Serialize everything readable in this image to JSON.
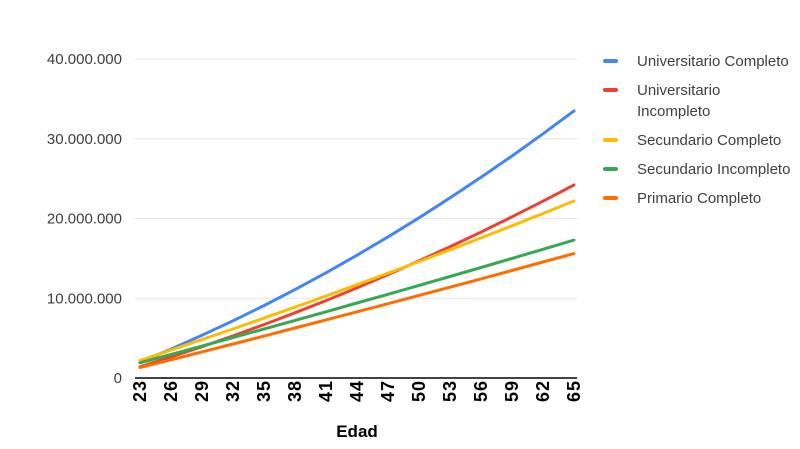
{
  "chart_data": {
    "type": "line",
    "title": "",
    "xlabel": "Edad",
    "ylabel": "",
    "grid": true,
    "legend_position": "right",
    "ylim": [
      0,
      40000000
    ],
    "x": [
      23,
      26,
      29,
      32,
      35,
      38,
      41,
      44,
      47,
      50,
      53,
      56,
      59,
      62,
      65
    ],
    "y_ticks": [
      {
        "label": "0",
        "value": 0
      },
      {
        "label": "10.000.000",
        "value": 10000000
      },
      {
        "label": "20.000.000",
        "value": 20000000
      },
      {
        "label": "30.000.000",
        "value": 30000000
      },
      {
        "label": "40.000.000",
        "value": 40000000
      }
    ],
    "series": [
      {
        "name": "Universitario Completo",
        "color": "#4285F4",
        "values": [
          2000000,
          3630000,
          5350000,
          7170000,
          9080000,
          11090000,
          13190000,
          15400000,
          17690000,
          20090000,
          22580000,
          25160000,
          27840000,
          30620000,
          33490000
        ]
      },
      {
        "name": "Universitario Incompleto",
        "color": "#EA4335",
        "values": [
          1400000,
          2630000,
          3920000,
          5280000,
          6690000,
          8170000,
          9700000,
          11300000,
          12960000,
          14680000,
          16460000,
          18300000,
          20210000,
          22170000,
          24200000
        ]
      },
      {
        "name": "Secundario Completo",
        "color": "#FBBC04",
        "values": [
          2200000,
          3500000,
          4810000,
          6150000,
          7510000,
          8880000,
          10280000,
          11700000,
          13140000,
          14600000,
          16070000,
          17570000,
          19090000,
          20630000,
          22190000
        ]
      },
      {
        "name": "Secundario Incompleto",
        "color": "#34A853",
        "values": [
          1900000,
          2950000,
          4000000,
          5070000,
          6140000,
          7220000,
          8300000,
          9400000,
          10500000,
          11610000,
          12730000,
          13860000,
          15000000,
          16140000,
          17290000
        ]
      },
      {
        "name": "Primario Completo",
        "color": "#FF6D01",
        "values": [
          1300000,
          2280000,
          3270000,
          4260000,
          5260000,
          6270000,
          7280000,
          8300000,
          9320000,
          10360000,
          11390000,
          12430000,
          13480000,
          14540000,
          15600000
        ]
      }
    ],
    "colors": {
      "gridline": "#e6e6e6",
      "axis_line": "#424242",
      "background": "#ffffff"
    }
  }
}
